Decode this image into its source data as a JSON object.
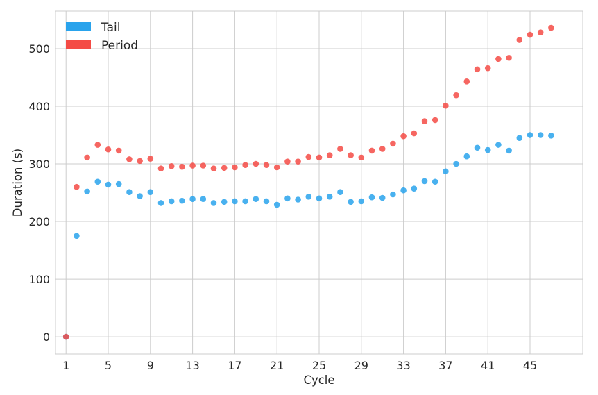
{
  "chart_data": {
    "type": "scatter",
    "title": "",
    "xlabel": "Cycle",
    "ylabel": "Duration (s)",
    "xlim": [
      0,
      50
    ],
    "ylim": [
      -30,
      565
    ],
    "xticks": [
      1,
      5,
      9,
      13,
      17,
      21,
      25,
      29,
      33,
      37,
      41,
      45
    ],
    "yticks": [
      0,
      100,
      200,
      300,
      400,
      500
    ],
    "grid": true,
    "legend_position": "top-left",
    "x": [
      1,
      2,
      3,
      4,
      5,
      6,
      7,
      8,
      9,
      10,
      11,
      12,
      13,
      14,
      15,
      16,
      17,
      18,
      19,
      20,
      21,
      22,
      23,
      24,
      25,
      26,
      27,
      28,
      29,
      30,
      31,
      32,
      33,
      34,
      35,
      36,
      37,
      38,
      39,
      40,
      41,
      42,
      43,
      44,
      45,
      46,
      47
    ],
    "series": [
      {
        "name": "Tail",
        "color": "#29a3ec",
        "values": [
          0,
          175,
          252,
          269,
          264,
          265,
          251,
          244,
          251,
          232,
          235,
          236,
          239,
          239,
          232,
          234,
          235,
          235,
          239,
          235,
          229,
          240,
          238,
          243,
          240,
          243,
          251,
          234,
          235,
          242,
          241,
          247,
          254,
          257,
          270,
          269,
          287,
          300,
          313,
          328,
          324,
          333,
          323,
          345,
          350,
          350,
          349
        ]
      },
      {
        "name": "Period",
        "color": "#f44b45",
        "values": [
          0,
          260,
          311,
          333,
          325,
          323,
          308,
          305,
          309,
          292,
          296,
          295,
          297,
          297,
          292,
          293,
          294,
          298,
          300,
          298,
          294,
          304,
          304,
          312,
          311,
          315,
          326,
          315,
          311,
          323,
          326,
          335,
          348,
          353,
          374,
          376,
          401,
          419,
          443,
          464,
          466,
          482,
          484,
          515,
          524,
          528,
          536
        ]
      }
    ]
  }
}
